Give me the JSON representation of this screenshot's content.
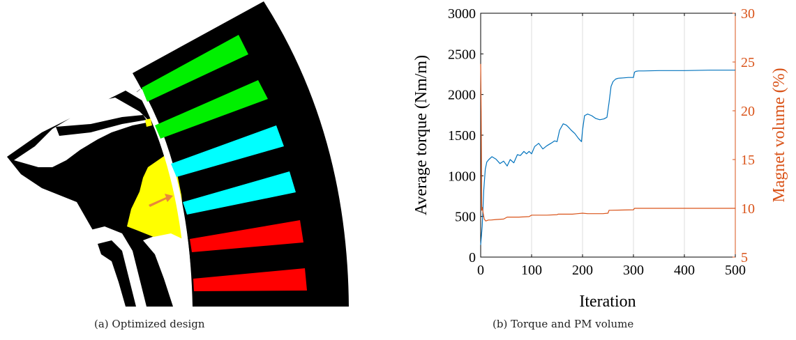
{
  "captions": {
    "a": "(a) Optimized design",
    "b": "(b) Torque and PM volume"
  },
  "design": {
    "colors": {
      "background": "#000000",
      "gap": "#ffffff",
      "green": "#00f000",
      "cyan": "#00ffff",
      "red": "#ff0000",
      "yellow": "#ffff00",
      "arrow": "#e8883a"
    }
  },
  "chart_data": {
    "type": "line",
    "title": "",
    "xlabel": "Iteration",
    "ylabel_left": "Average torque (Nm/m)",
    "ylabel_right": "Magnet volume (%)",
    "xlim": [
      0,
      500
    ],
    "ylim_left": [
      0,
      3000
    ],
    "ylim_right": [
      5,
      30
    ],
    "xticks": [
      0,
      100,
      200,
      300,
      400,
      500
    ],
    "yticks_left": [
      0,
      500,
      1000,
      1500,
      2000,
      2500,
      3000
    ],
    "yticks_right": [
      5,
      10,
      15,
      20,
      25,
      30
    ],
    "grid": "vertical",
    "colors": {
      "left": "#0072bd",
      "right": "#d95319"
    },
    "series": [
      {
        "axis": "left",
        "x": [
          0,
          3,
          6,
          9,
          12,
          16,
          22,
          30,
          38,
          45,
          52,
          58,
          65,
          72,
          78,
          85,
          90,
          95,
          100,
          106,
          114,
          122,
          130,
          138,
          145,
          150,
          155,
          162,
          168,
          172,
          178,
          185,
          192,
          198,
          200,
          204,
          210,
          218,
          226,
          234,
          242,
          248,
          252,
          256,
          260,
          265,
          270,
          280,
          290,
          300,
          302,
          305,
          310,
          320,
          350,
          400,
          450,
          500
        ],
        "values": [
          150,
          380,
          820,
          1080,
          1170,
          1200,
          1235,
          1205,
          1150,
          1180,
          1120,
          1200,
          1160,
          1260,
          1250,
          1300,
          1270,
          1300,
          1270,
          1360,
          1400,
          1330,
          1370,
          1400,
          1430,
          1420,
          1560,
          1640,
          1625,
          1600,
          1560,
          1520,
          1460,
          1420,
          1560,
          1740,
          1760,
          1740,
          1705,
          1690,
          1700,
          1720,
          1900,
          2100,
          2160,
          2190,
          2200,
          2205,
          2210,
          2210,
          2275,
          2285,
          2290,
          2290,
          2295,
          2295,
          2300,
          2300
        ]
      },
      {
        "axis": "right",
        "x": [
          0,
          1,
          2,
          3,
          5,
          7,
          10,
          15,
          20,
          30,
          45,
          52,
          60,
          75,
          95,
          100,
          105,
          130,
          150,
          152,
          180,
          190,
          200,
          210,
          240,
          250,
          252,
          255,
          300,
          302,
          350,
          400,
          450,
          500
        ],
        "values": [
          24.8,
          20.0,
          9.8,
          10.1,
          9.5,
          8.9,
          8.7,
          8.8,
          8.8,
          8.85,
          8.9,
          9.1,
          9.1,
          9.1,
          9.15,
          9.3,
          9.3,
          9.3,
          9.35,
          9.4,
          9.4,
          9.45,
          9.5,
          9.45,
          9.45,
          9.5,
          9.8,
          9.8,
          9.85,
          10.0,
          10.0,
          10.0,
          10.0,
          10.0
        ]
      }
    ]
  }
}
